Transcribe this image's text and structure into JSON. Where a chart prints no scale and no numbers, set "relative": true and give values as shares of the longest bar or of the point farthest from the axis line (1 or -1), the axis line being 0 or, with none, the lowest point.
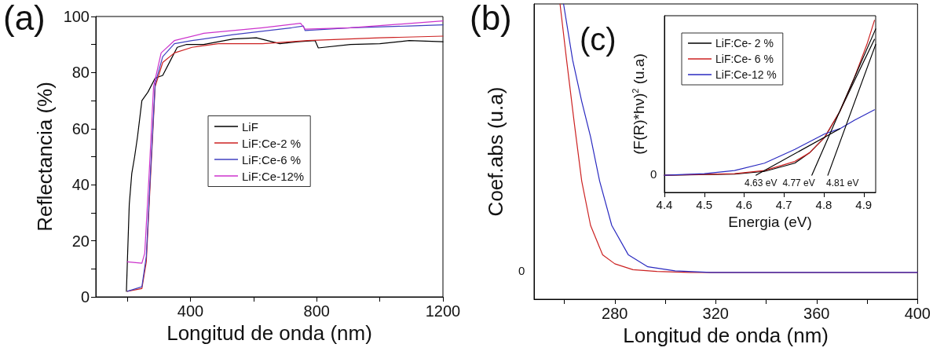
{
  "chart_data": [
    {
      "type": "line",
      "annotations": [
        "(a)"
      ],
      "xlabel": "Longitud de onda (nm)",
      "ylabel": "Reflectancia (%)",
      "xlim": [
        100,
        1200
      ],
      "xticks": [
        {
          "value": 200,
          "label": null
        },
        400,
        {
          "value": 600,
          "label": null
        },
        800,
        {
          "value": 1000,
          "label": null
        },
        1200
      ],
      "ylim": [
        0,
        100
      ],
      "yticks": [
        0,
        {
          "value": 10,
          "label": null
        },
        20,
        {
          "value": 30,
          "label": null
        },
        40,
        {
          "value": 50,
          "label": null
        },
        60,
        {
          "value": 70,
          "label": null
        },
        80,
        {
          "value": 90,
          "label": null
        },
        100
      ],
      "legend": "center",
      "marker": "none",
      "series": [
        {
          "name": "LiF",
          "color": "#000000",
          "x": [
            197,
            200,
            206,
            214,
            223,
            232,
            246,
            265,
            288,
            312,
            335,
            358,
            386,
            442,
            535,
            609,
            683,
            740,
            795,
            805,
            907,
            1000,
            1093,
            1200
          ],
          "values": [
            2,
            12.5,
            33,
            44,
            50,
            57,
            70,
            73,
            78,
            79,
            84,
            89,
            90,
            90,
            92,
            92.4,
            90.3,
            91,
            91.4,
            88.8,
            90,
            90.3,
            91.4,
            91
          ]
        },
        {
          "name": "LiF:Ce-2 %",
          "color": "#cc2222",
          "x": [
            200,
            246,
            260,
            274,
            288,
            312,
            349,
            405,
            488,
            628,
            772,
            1000,
            1200
          ],
          "values": [
            2,
            3,
            12.5,
            44,
            75,
            83.6,
            87,
            89,
            90.3,
            90.3,
            91.4,
            92.4,
            93
          ]
        },
        {
          "name": "LiF:Ce-6 %",
          "color": "#4040c0",
          "x": [
            200,
            246,
            260,
            274,
            288,
            312,
            349,
            405,
            535,
            721,
            758,
            763,
            907,
            1093,
            1200
          ],
          "values": [
            2,
            3.6,
            14.5,
            46,
            76,
            85.7,
            90.3,
            91.4,
            93.5,
            96,
            96.6,
            95,
            96,
            96.6,
            97
          ]
        },
        {
          "name": "LiF:Ce-12%",
          "color": "#cc33cc",
          "x": [
            200,
            246,
            255,
            269,
            283,
            307,
            349,
            442,
            628,
            749,
            763,
            907,
            1200
          ],
          "values": [
            12.5,
            12,
            15.6,
            44,
            75,
            87,
            91.4,
            94,
            96,
            97.6,
            95.5,
            96,
            98.4
          ]
        }
      ]
    },
    {
      "type": "line",
      "relative": true,
      "annotations": [
        "(b)",
        "0"
      ],
      "xlabel": "Longitud de onda (nm)",
      "ylabel": "Coef.abs (u.a)",
      "xlim": [
        248,
        400
      ],
      "xticks": [
        {
          "value": 260,
          "label": null
        },
        280,
        {
          "value": 300,
          "label": null
        },
        320,
        {
          "value": 340,
          "label": null
        },
        360,
        {
          "value": 380,
          "label": null
        },
        400
      ],
      "marker": "none",
      "series": [
        {
          "color": "#cc2222",
          "x": [
            258.3,
            260.9,
            263.9,
            266.9,
            270.4,
            275.2,
            280,
            287.2,
            296.7,
            309.9,
            400
          ],
          "values": [
            1,
            0.81,
            0.6,
            0.4,
            0.25,
            0.15,
            0.12,
            0.1,
            0.094,
            0.091,
            0.091
          ]
        },
        {
          "color": "#2a2ac0",
          "x": [
            259.7,
            263.3,
            266.9,
            270.4,
            274,
            278.8,
            285.4,
            293.1,
            303.9,
            318,
            400
          ],
          "values": [
            1,
            0.81,
            0.67,
            0.55,
            0.4,
            0.25,
            0.15,
            0.11,
            0.096,
            0.091,
            0.091
          ]
        }
      ]
    },
    {
      "type": "line",
      "relative": true,
      "annotations": [
        "(c)",
        "0",
        {
          "text": "4.63 eV",
          "x": 4.63,
          "y": 0.1
        },
        {
          "text": "4.77 eV",
          "x": 4.77,
          "y": 0.1
        },
        {
          "text": "4.81 eV",
          "x": 4.81,
          "y": 0.1
        }
      ],
      "xlabel": "Energia (eV)",
      "ylabel": "(F(R)*hν)$^{2}$ (u.a)",
      "xlim": [
        4.4,
        4.93
      ],
      "xticks": [
        4.4,
        4.5,
        4.6,
        4.7,
        4.8,
        4.9
      ],
      "legend": "top left",
      "marker": "none",
      "series": [
        {
          "name": "LiF:Ce- 2 %",
          "color": "#000000",
          "x": [
            4.4,
            4.576,
            4.651,
            4.727,
            4.764,
            4.802,
            4.84,
            4.877,
            4.927
          ],
          "values": [
            0.1,
            0.107,
            0.122,
            0.17,
            0.23,
            0.32,
            0.47,
            0.65,
            0.89
          ]
        },
        {
          "name": "LiF:Ce- 6 %",
          "color": "#cc2222",
          "x": [
            4.4,
            4.576,
            4.651,
            4.727,
            4.764,
            4.802,
            4.84,
            4.877,
            4.908,
            4.927
          ],
          "values": [
            0.1,
            0.109,
            0.127,
            0.18,
            0.23,
            0.32,
            0.47,
            0.67,
            0.86,
            1
          ]
        },
        {
          "name": "LiF:Ce-12 %",
          "color": "#2a2ac0",
          "x": [
            4.4,
            4.5,
            4.576,
            4.651,
            4.727,
            4.802,
            4.84,
            4.877,
            4.927
          ],
          "values": [
            0.1,
            0.109,
            0.127,
            0.17,
            0.25,
            0.34,
            0.37,
            0.42,
            0.48
          ]
        },
        {
          "color": "#000000",
          "x": [
            4.63,
            4.84
          ],
          "values": [
            0.1,
            0.37
          ]
        },
        {
          "color": "#000000",
          "x": [
            4.77,
            4.93
          ],
          "values": [
            0.1,
            0.95
          ]
        },
        {
          "color": "#000000",
          "x": [
            4.81,
            4.93
          ],
          "values": [
            0.1,
            0.86
          ]
        }
      ]
    }
  ]
}
